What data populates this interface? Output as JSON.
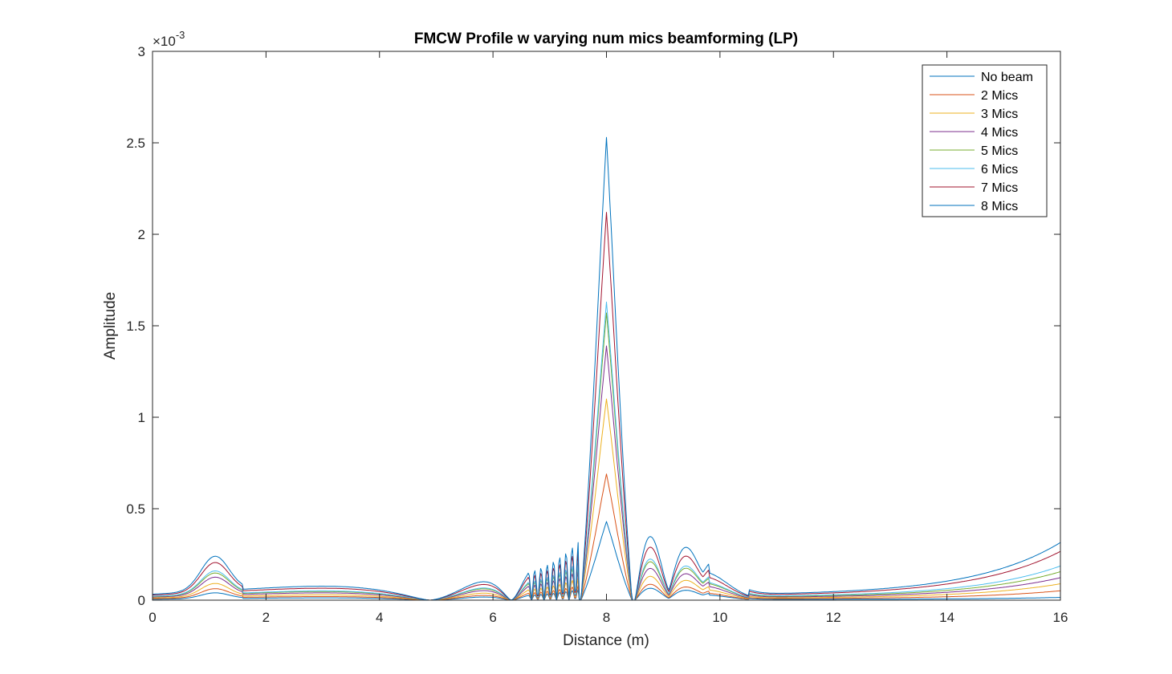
{
  "chart_data": {
    "type": "line",
    "title": "FMCW Profile w varying num mics beamforming (LP)",
    "xlabel": "Distance (m)",
    "ylabel": "Amplitude",
    "exponent_label": "×10",
    "exponent_power": "-3",
    "xlim": [
      0,
      16
    ],
    "ylim": [
      0,
      3
    ],
    "xticks": [
      "0",
      "2",
      "4",
      "6",
      "8",
      "10",
      "12",
      "14",
      "16"
    ],
    "yticks": [
      "0",
      "0.5",
      "1",
      "1.5",
      "2",
      "2.5",
      "3"
    ],
    "grid": false,
    "legend_position": "top-right",
    "peak_x": 8.0,
    "series": [
      {
        "name": "No beam",
        "color": "#0072BD",
        "peak": 0.43,
        "side": 0.09,
        "floor": 0.0035,
        "edge": 0.011
      },
      {
        "name": "2 Mics",
        "color": "#D95319",
        "peak": 0.69,
        "side": 0.12,
        "floor": 0.0055,
        "edge": 0.045
      },
      {
        "name": "3 Mics",
        "color": "#EDB120",
        "peak": 1.1,
        "side": 0.18,
        "floor": 0.008,
        "edge": 0.08
      },
      {
        "name": "4 Mics",
        "color": "#7E2F8E",
        "peak": 1.39,
        "side": 0.24,
        "floor": 0.011,
        "edge": 0.11
      },
      {
        "name": "5 Mics",
        "color": "#77AC30",
        "peak": 1.57,
        "side": 0.29,
        "floor": 0.013,
        "edge": 0.14
      },
      {
        "name": "6 Mics",
        "color": "#4DBEEE",
        "peak": 1.63,
        "side": 0.31,
        "floor": 0.014,
        "edge": 0.17
      },
      {
        "name": "7 Mics",
        "color": "#A2142F",
        "peak": 2.12,
        "side": 0.4,
        "floor": 0.018,
        "edge": 0.245
      },
      {
        "name": "8 Mics",
        "color": "#0072BD",
        "peak": 2.53,
        "side": 0.48,
        "floor": 0.021,
        "edge": 0.29
      }
    ]
  }
}
